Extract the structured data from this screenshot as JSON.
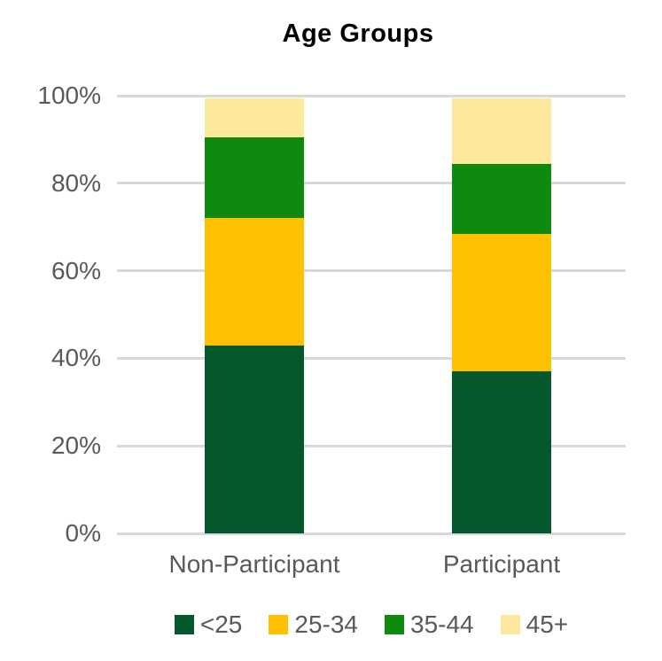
{
  "chart_data": {
    "type": "bar",
    "stacked": true,
    "percent_stacked": true,
    "title": "Age Groups",
    "categories": [
      "Non-Participant",
      "Participant"
    ],
    "series": [
      {
        "name": "<25",
        "color": "#05582B",
        "values": [
          43,
          37
        ]
      },
      {
        "name": "25-34",
        "color": "#FFC000",
        "values": [
          29,
          31.5
        ]
      },
      {
        "name": "35-44",
        "color": "#0E8A0E",
        "values": [
          18.5,
          16
        ]
      },
      {
        "name": "45+",
        "color": "#FCE99B",
        "values": [
          9,
          15
        ]
      }
    ],
    "y_axis": {
      "ticks_top_to_bottom": [
        "100%",
        "80%",
        "60%",
        "40%",
        "20%",
        "0%"
      ],
      "ylim": [
        0,
        100
      ]
    },
    "legend_position": "bottom",
    "grid": true,
    "gridline_color": "#d9d9d9",
    "label_color": "#595959",
    "title_color": "#000000",
    "background_color": "#ffffff"
  }
}
